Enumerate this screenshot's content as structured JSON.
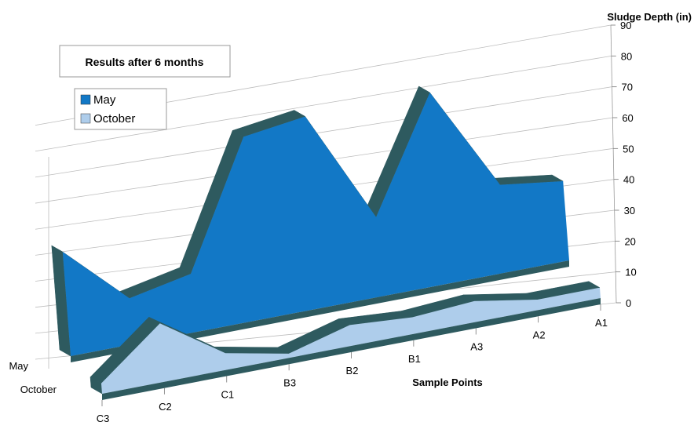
{
  "chart_data": {
    "type": "area",
    "title": "Results after 6 months",
    "ylabel": "Sludge Depth (in)",
    "xlabel": "Sample Points",
    "ylim": [
      0,
      90
    ],
    "y_ticks": [
      "0",
      "10",
      "20",
      "30",
      "40",
      "50",
      "60",
      "70",
      "80",
      "90"
    ],
    "categories": [
      "C3",
      "C2",
      "C1",
      "B3",
      "B2",
      "B1",
      "A3",
      "A2",
      "A1"
    ],
    "depth_labels": [
      "May",
      "October"
    ],
    "series": [
      {
        "name": "May",
        "values": [
          50,
          22,
          28,
          88,
          92,
          38,
          92,
          42,
          38
        ],
        "color": "#1278c6"
      },
      {
        "name": "October",
        "values": [
          5,
          28,
          8,
          2,
          10,
          8,
          10,
          5,
          5
        ],
        "color": "#aecdeb"
      }
    ],
    "side_color": "#2e5a5f",
    "grid": true,
    "legend_position": "top-left"
  }
}
